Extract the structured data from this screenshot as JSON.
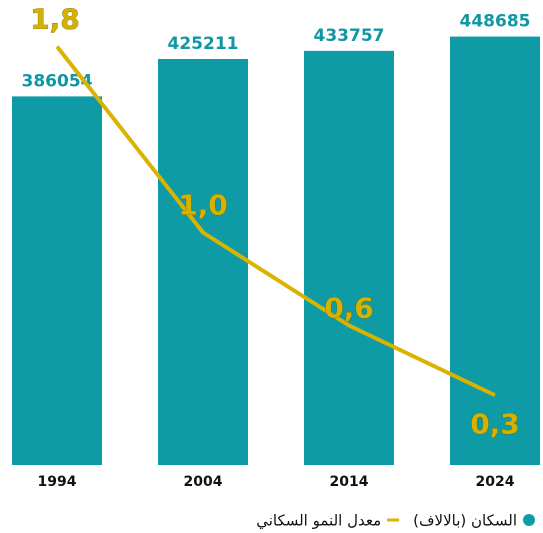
{
  "chart_data": {
    "type": "bar+line",
    "categories": [
      "1994",
      "2004",
      "2014",
      "2024"
    ],
    "series": [
      {
        "name": "السكان (بالالاف)",
        "type": "bar",
        "color": "#0e9ba6",
        "values": [
          386054,
          425211,
          433757,
          448685
        ]
      },
      {
        "name": "معدل النمو السكاني",
        "type": "line",
        "color": "#d9b300",
        "axis": "y2",
        "values": [
          1.8,
          1.0,
          0.6,
          0.3
        ],
        "value_labels": [
          "1,8",
          "1,0",
          "0,6",
          "0,3"
        ]
      }
    ],
    "ylim": [
      0,
      487000
    ],
    "y2lim": [
      0,
      2.0
    ],
    "grid": false
  }
}
